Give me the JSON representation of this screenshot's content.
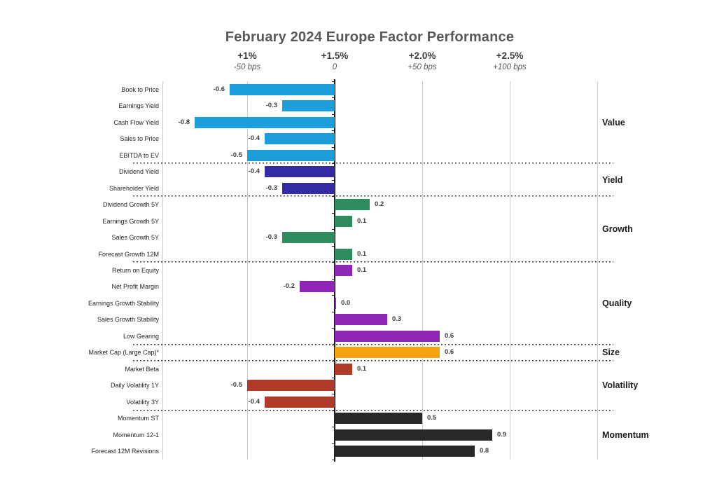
{
  "chart_data": {
    "type": "bar",
    "orientation": "horizontal",
    "title": "February 2024 Europe Factor Performance",
    "x_axis": {
      "gridlines": true,
      "columns": [
        {
          "pct": "+1%",
          "bps": "-50 bps",
          "value": -0.5
        },
        {
          "pct": "+1.5%",
          "bps": "0",
          "value": 0
        },
        {
          "pct": "+2.0%",
          "bps": "+50 bps",
          "value": 0.5
        },
        {
          "pct": "+2.5%",
          "bps": "+100 bps",
          "value": 1.0
        }
      ]
    },
    "groups": [
      {
        "name": "Value",
        "color": "#1b9ed9",
        "factors": [
          {
            "label": "Book to Price",
            "value": -0.6,
            "value_label": "-0.6"
          },
          {
            "label": "Earnings Yield",
            "value": -0.3,
            "value_label": "-0.3"
          },
          {
            "label": "Cash Flow Yield",
            "value": -0.8,
            "value_label": "-0.8"
          },
          {
            "label": "Sales to Price",
            "value": -0.4,
            "value_label": "-0.4"
          },
          {
            "label": "EBITDA to EV",
            "value": -0.5,
            "value_label": "-0.5"
          }
        ]
      },
      {
        "name": "Yield",
        "color": "#322ba3",
        "factors": [
          {
            "label": "Dividend Yield",
            "value": -0.4,
            "value_label": "-0.4"
          },
          {
            "label": "Shareholder Yield",
            "value": -0.3,
            "value_label": "-0.3"
          }
        ]
      },
      {
        "name": "Growth",
        "color": "#2e8c5e",
        "factors": [
          {
            "label": "Dividend Growth 5Y",
            "value": 0.2,
            "value_label": "0.2"
          },
          {
            "label": "Earnings Growth 5Y",
            "value": 0.1,
            "value_label": "0.1"
          },
          {
            "label": "Sales Growth 5Y",
            "value": -0.3,
            "value_label": "-0.3"
          },
          {
            "label": "Forecast Growth 12M",
            "value": 0.1,
            "value_label": "0.1"
          }
        ]
      },
      {
        "name": "Quality",
        "color": "#8e26b8",
        "factors": [
          {
            "label": "Return on Equity",
            "value": 0.1,
            "value_label": "0.1"
          },
          {
            "label": "Net Profit Margin",
            "value": -0.2,
            "value_label": "-0.2"
          },
          {
            "label": "Earnings Growth Stability",
            "value": 0.0,
            "value_label": "0.0"
          },
          {
            "label": "Sales Growth Stability",
            "value": 0.3,
            "value_label": "0.3"
          },
          {
            "label": "Low Gearing",
            "value": 0.6,
            "value_label": "0.6"
          }
        ]
      },
      {
        "name": "Size",
        "color": "#f7a311",
        "factors": [
          {
            "label": "Market Cap (Large Cap)*",
            "value": 0.6,
            "value_label": "0.6"
          }
        ]
      },
      {
        "name": "Volatility",
        "color": "#af3a27",
        "factors": [
          {
            "label": "Market Beta",
            "value": 0.1,
            "value_label": "0.1"
          },
          {
            "label": "Daily Volatility 1Y",
            "value": -0.5,
            "value_label": "-0.5"
          },
          {
            "label": "Volatility 3Y",
            "value": -0.4,
            "value_label": "-0.4"
          }
        ]
      },
      {
        "name": "Momentum",
        "color": "#282828",
        "factors": [
          {
            "label": "Momentum ST",
            "value": 0.5,
            "value_label": "0.5"
          },
          {
            "label": "Momentum 12-1",
            "value": 0.9,
            "value_label": "0.9"
          },
          {
            "label": "Forecast 12M Revisions",
            "value": 0.8,
            "value_label": "0.8"
          }
        ]
      }
    ]
  }
}
